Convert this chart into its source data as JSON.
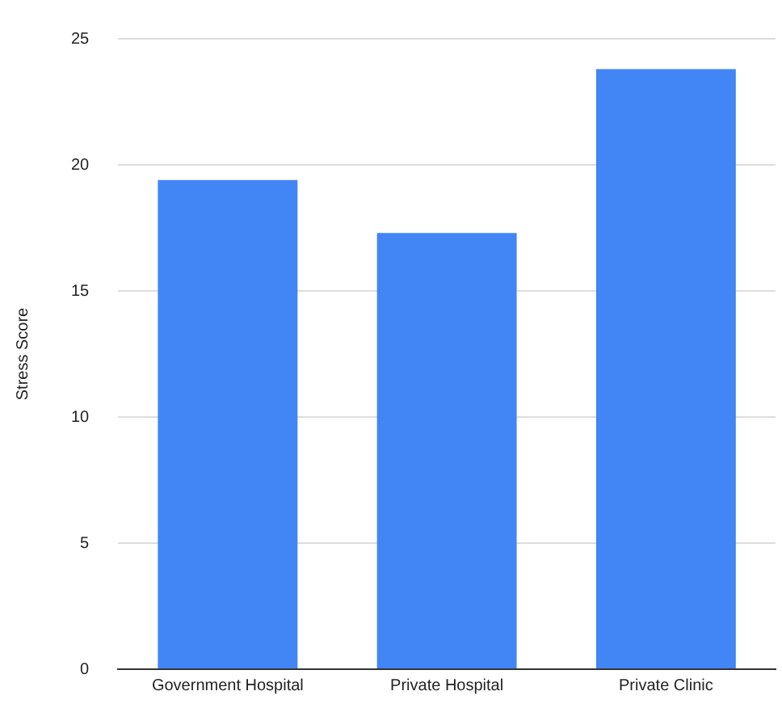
{
  "chart_data": {
    "type": "bar",
    "ylabel": "Stress Score",
    "categories": [
      "Government Hospital",
      "Private Hospital",
      "Private Clinic"
    ],
    "values": [
      19.4,
      17.3,
      23.8
    ],
    "color": "#4285f4",
    "ylim": [
      0,
      25
    ],
    "yticks": [
      0,
      5,
      10,
      15,
      20,
      25
    ],
    "grid": "y",
    "legend": false
  }
}
